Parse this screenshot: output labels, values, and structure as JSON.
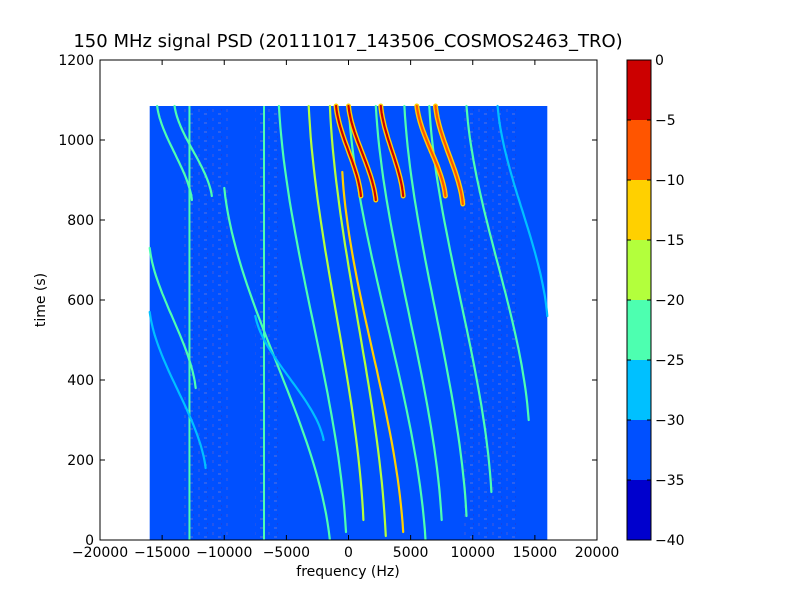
{
  "chart_data": {
    "type": "heatmap",
    "title": "150 MHz signal PSD (20111017_143506_COSMOS2463_TRO)",
    "xlabel": "frequency (Hz)",
    "ylabel": "time (s)",
    "xlim": [
      -20000,
      20000
    ],
    "ylim": [
      0,
      1200
    ],
    "xticks": [
      -20000,
      -15000,
      -10000,
      -5000,
      0,
      5000,
      10000,
      15000,
      20000
    ],
    "yticks": [
      0,
      200,
      400,
      600,
      800,
      1000,
      1200
    ],
    "data_extent": {
      "freq": [
        -16000,
        16000
      ],
      "time": [
        0,
        1085
      ]
    },
    "background_level": -32,
    "vertical_lines": [
      {
        "freq": -12800,
        "level": -25
      },
      {
        "freq": -6800,
        "level": -22
      },
      {
        "freq": -8400,
        "level": -31
      }
    ],
    "curves": [
      {
        "f0": -15400,
        "f1": -12600,
        "t0": 1085,
        "t1": 850,
        "level": -23
      },
      {
        "f0": -14000,
        "f1": -11000,
        "t0": 1085,
        "t1": 860,
        "level": -22
      },
      {
        "f0": -16000,
        "f1": -12300,
        "t0": 730,
        "t1": 380,
        "level": -25
      },
      {
        "f0": -16000,
        "f1": -11500,
        "t0": 570,
        "t1": 180,
        "level": -26
      },
      {
        "f0": -10000,
        "f1": -1500,
        "t0": 880,
        "t1": 0,
        "level": -24
      },
      {
        "f0": -5600,
        "f1": -200,
        "t0": 1085,
        "t1": 20,
        "level": -22
      },
      {
        "f0": -3200,
        "f1": 1200,
        "t0": 1085,
        "t1": 50,
        "level": -20
      },
      {
        "f0": -1500,
        "f1": 3000,
        "t0": 1085,
        "t1": 10,
        "level": -20
      },
      {
        "f0": -500,
        "f1": 4400,
        "t0": 920,
        "t1": 20,
        "level": -14
      },
      {
        "f0": 0,
        "f1": 6200,
        "t0": 1085,
        "t1": 0,
        "level": -22
      },
      {
        "f0": 2200,
        "f1": 7500,
        "t0": 1085,
        "t1": 50,
        "level": -23
      },
      {
        "f0": 4500,
        "f1": 9500,
        "t0": 1085,
        "t1": 60,
        "level": -22
      },
      {
        "f0": 6500,
        "f1": 11500,
        "t0": 1085,
        "t1": 120,
        "level": -24
      },
      {
        "f0": 9500,
        "f1": 14500,
        "t0": 1085,
        "t1": 300,
        "level": -25
      },
      {
        "f0": 12000,
        "f1": 16000,
        "t0": 1085,
        "t1": 560,
        "level": -26
      },
      {
        "f0": -7500,
        "f1": -2000,
        "t0": 560,
        "t1": 250,
        "level": -27
      }
    ],
    "top_bright_segments": [
      {
        "f0": -1000,
        "f1": 1000,
        "t0": 1085,
        "t1": 860,
        "level": -2
      },
      {
        "f0": 0,
        "f1": 2200,
        "t0": 1085,
        "t1": 850,
        "level": -4
      },
      {
        "f0": 2600,
        "f1": 4400,
        "t0": 1085,
        "t1": 860,
        "level": -1
      },
      {
        "f0": 5500,
        "f1": 7800,
        "t0": 1085,
        "t1": 860,
        "level": -6
      },
      {
        "f0": 7000,
        "f1": 9200,
        "t0": 1085,
        "t1": 840,
        "level": -8
      }
    ],
    "colorbar": {
      "bounds": [
        -40,
        -35,
        -30,
        -25,
        -20,
        -15,
        -10,
        -5,
        0
      ],
      "colors": [
        "#0000cd",
        "#0050ff",
        "#00c0ff",
        "#4dffb0",
        "#b3ff3c",
        "#ffd000",
        "#ff5500",
        "#cc0000"
      ],
      "ticks": [
        0,
        -5,
        -10,
        -15,
        -20,
        -25,
        -30,
        -35,
        -40
      ]
    },
    "grid": false,
    "legend": "none"
  }
}
